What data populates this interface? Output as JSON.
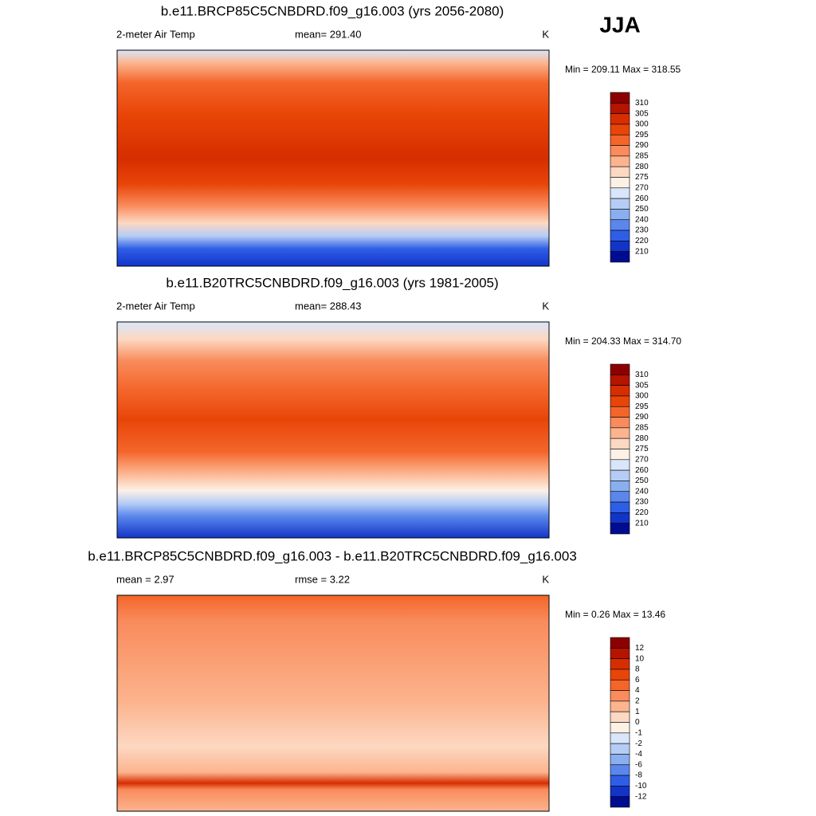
{
  "season": "JJA",
  "panels": [
    {
      "title": "b.e11.BRCP85C5CNBDRD.f09_g16.003 (yrs 2056-2080)",
      "left_label": "2-meter Air Temp",
      "center_label": "mean= 291.40",
      "units": "K",
      "minmax": "Min = 209.11 Max = 318.55",
      "colorbar": {
        "labels": [
          "310",
          "305",
          "300",
          "295",
          "290",
          "285",
          "280",
          "275",
          "270",
          "260",
          "250",
          "240",
          "230",
          "220",
          "210"
        ],
        "colors": [
          "#8b0000",
          "#b51400",
          "#d62e00",
          "#e84508",
          "#f4652a",
          "#f98b5c",
          "#fcb48e",
          "#fdd8c2",
          "#fdf1e6",
          "#d9e6f9",
          "#b5cdf5",
          "#8aaff0",
          "#5b87ec",
          "#2f5ee6",
          "#1234c8",
          "#000c90"
        ]
      }
    },
    {
      "title": "b.e11.B20TRC5CNBDRD.f09_g16.003 (yrs 1981-2005)",
      "left_label": "2-meter Air Temp",
      "center_label": "mean= 288.43",
      "units": "K",
      "minmax": "Min = 204.33 Max = 314.70",
      "colorbar": {
        "labels": [
          "310",
          "305",
          "300",
          "295",
          "290",
          "285",
          "280",
          "275",
          "270",
          "260",
          "250",
          "240",
          "230",
          "220",
          "210"
        ],
        "colors": [
          "#8b0000",
          "#b51400",
          "#d62e00",
          "#e84508",
          "#f4652a",
          "#f98b5c",
          "#fcb48e",
          "#fdd8c2",
          "#fdf1e6",
          "#d9e6f9",
          "#b5cdf5",
          "#8aaff0",
          "#5b87ec",
          "#2f5ee6",
          "#1234c8",
          "#000c90"
        ]
      }
    },
    {
      "title": "b.e11.BRCP85C5CNBDRD.f09_g16.003 - b.e11.B20TRC5CNBDRD.f09_g16.003",
      "left_label": "mean =   2.97",
      "center_label": "rmse =   3.22",
      "units": "K",
      "minmax": "Min =   0.26 Max =  13.46",
      "colorbar": {
        "labels": [
          "12",
          "10",
          "8",
          "6",
          "4",
          "2",
          "1",
          "0",
          "-1",
          "-2",
          "-4",
          "-6",
          "-8",
          "-10",
          "-12"
        ],
        "colors": [
          "#8b0000",
          "#b51400",
          "#d62e00",
          "#e84508",
          "#f4652a",
          "#f98b5c",
          "#fcb48e",
          "#fdd8c2",
          "#fdf1e6",
          "#d9e6f9",
          "#b5cdf5",
          "#8aaff0",
          "#5b87ec",
          "#2f5ee6",
          "#1234c8",
          "#000c90"
        ]
      }
    }
  ]
}
